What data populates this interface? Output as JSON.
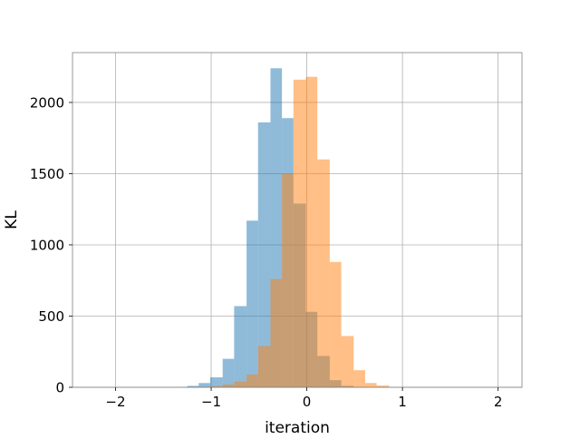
{
  "chart_data": {
    "type": "bar",
    "title": "",
    "xlabel": "iteration",
    "ylabel": "KL",
    "xlim": [
      -2.45,
      2.25
    ],
    "ylim": [
      0,
      2350
    ],
    "xticks": [
      -2,
      -1,
      0,
      1,
      2
    ],
    "xtick_labels": [
      "−2",
      "−1",
      "0",
      "1",
      "2"
    ],
    "yticks": [
      0,
      500,
      1000,
      1500,
      2000
    ],
    "ytick_labels": [
      "0",
      "500",
      "1000",
      "1500",
      "2000"
    ],
    "grid": true,
    "legend": false,
    "series": [
      {
        "color": "#1f77b4",
        "opacity": 0.5,
        "bins": [
          {
            "x0": -1.38,
            "x1": -1.25,
            "value": 2
          },
          {
            "x0": -1.25,
            "x1": -1.13,
            "value": 10
          },
          {
            "x0": -1.13,
            "x1": -1.01,
            "value": 30
          },
          {
            "x0": -1.01,
            "x1": -0.88,
            "value": 70
          },
          {
            "x0": -0.88,
            "x1": -0.76,
            "value": 200
          },
          {
            "x0": -0.76,
            "x1": -0.63,
            "value": 570
          },
          {
            "x0": -0.63,
            "x1": -0.51,
            "value": 1170
          },
          {
            "x0": -0.51,
            "x1": -0.38,
            "value": 1860
          },
          {
            "x0": -0.38,
            "x1": -0.26,
            "value": 2240
          },
          {
            "x0": -0.26,
            "x1": -0.14,
            "value": 1890
          },
          {
            "x0": -0.14,
            "x1": -0.01,
            "value": 1290
          },
          {
            "x0": -0.01,
            "x1": 0.11,
            "value": 530
          },
          {
            "x0": 0.11,
            "x1": 0.24,
            "value": 220
          },
          {
            "x0": 0.24,
            "x1": 0.36,
            "value": 50
          },
          {
            "x0": 0.36,
            "x1": 0.49,
            "value": 10
          },
          {
            "x0": 0.49,
            "x1": 0.61,
            "value": 2
          }
        ]
      },
      {
        "color": "#ff7f0e",
        "opacity": 0.5,
        "bins": [
          {
            "x0": -1.13,
            "x1": -1.01,
            "value": 3
          },
          {
            "x0": -1.01,
            "x1": -0.88,
            "value": 8
          },
          {
            "x0": -0.88,
            "x1": -0.76,
            "value": 20
          },
          {
            "x0": -0.76,
            "x1": -0.63,
            "value": 40
          },
          {
            "x0": -0.63,
            "x1": -0.51,
            "value": 90
          },
          {
            "x0": -0.51,
            "x1": -0.38,
            "value": 290
          },
          {
            "x0": -0.38,
            "x1": -0.26,
            "value": 760
          },
          {
            "x0": -0.26,
            "x1": -0.14,
            "value": 1500
          },
          {
            "x0": -0.14,
            "x1": -0.01,
            "value": 2160
          },
          {
            "x0": -0.01,
            "x1": 0.11,
            "value": 2180
          },
          {
            "x0": 0.11,
            "x1": 0.24,
            "value": 1600
          },
          {
            "x0": 0.24,
            "x1": 0.36,
            "value": 880
          },
          {
            "x0": 0.36,
            "x1": 0.49,
            "value": 360
          },
          {
            "x0": 0.49,
            "x1": 0.61,
            "value": 120
          },
          {
            "x0": 0.61,
            "x1": 0.73,
            "value": 30
          },
          {
            "x0": 0.73,
            "x1": 0.86,
            "value": 12
          }
        ]
      }
    ]
  }
}
